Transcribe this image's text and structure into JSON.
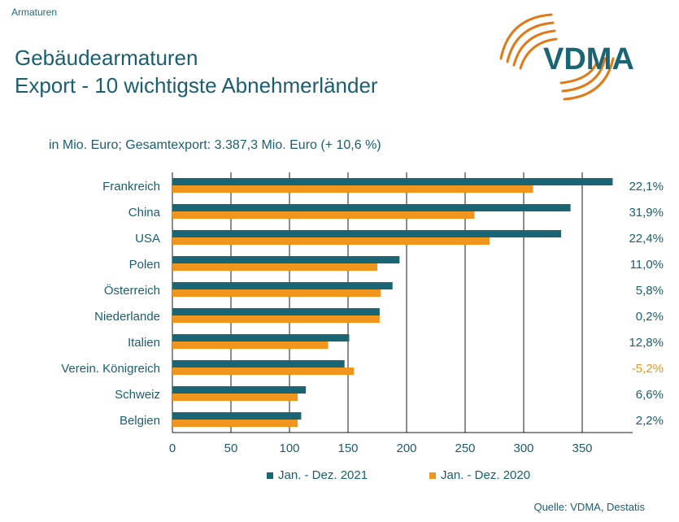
{
  "header": {
    "section": "Armaturen",
    "title_line1": "Gebäudearmaturen",
    "title_line2": "Export - 10 wichtigste Abnehmerländer",
    "subtitle": "in Mio. Euro; Gesamtexport: 3.387,3 Mio. Euro (+ 10,6 %)",
    "logo_text": "VDMA"
  },
  "footer": {
    "source": "Quelle: VDMA, Destatis"
  },
  "colors": {
    "series2021": "#1a6474",
    "series2020": "#f0961e",
    "negative": "#e8961e",
    "text": "#1b5e6e",
    "grid": "#1a1a1a"
  },
  "chart_data": {
    "type": "bar",
    "orientation": "horizontal",
    "categories": [
      "Frankreich",
      "China",
      "USA",
      "Polen",
      "Österreich",
      "Niederlande",
      "Italien",
      "Verein. Königreich",
      "Schweiz",
      "Belgien"
    ],
    "series": [
      {
        "name": "Jan. - Dez. 2021",
        "values": [
          376,
          340,
          332,
          194,
          188,
          177,
          151,
          147,
          114,
          110
        ]
      },
      {
        "name": "Jan. - Dez. 2020",
        "values": [
          308,
          258,
          271,
          175,
          178,
          177,
          133,
          155,
          107,
          107
        ]
      }
    ],
    "change_labels": [
      "22,1%",
      "31,9%",
      "22,4%",
      "11,0%",
      "5,8%",
      "0,2%",
      "12,8%",
      "-5,2%",
      "6,6%",
      "2,2%"
    ],
    "xlim": [
      0,
      380
    ],
    "xticks": [
      0,
      50,
      100,
      150,
      200,
      250,
      300,
      350
    ],
    "grid": true,
    "legend_position": "bottom"
  }
}
